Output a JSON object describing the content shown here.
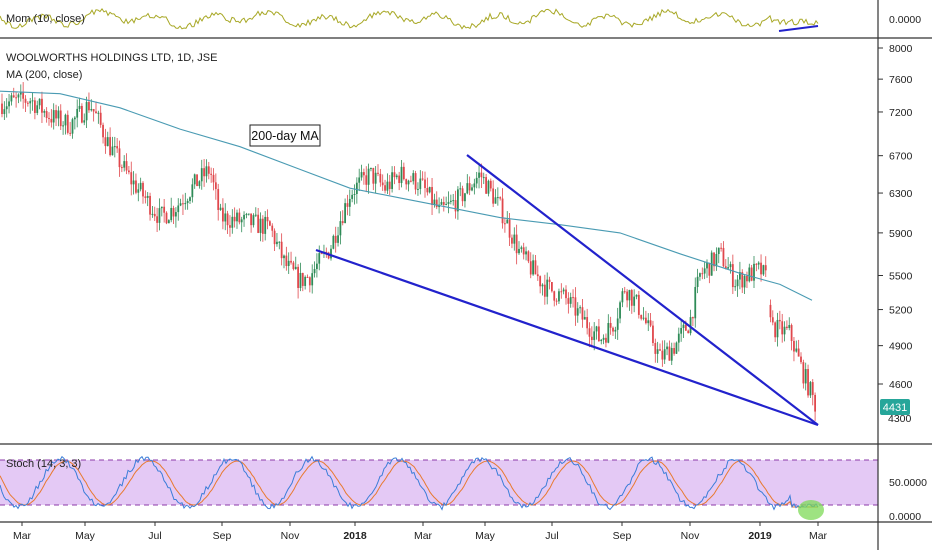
{
  "colors": {
    "momentum": "#a8a826",
    "ma": "#4a9bb3",
    "up_candle": "#2e8b57",
    "down_candle": "#e0474c",
    "trendline": "#2222cc",
    "stoch_k": "#3b7dd8",
    "stoch_d": "#e87a2f",
    "stoch_band": "#e4c9f5",
    "stoch_band_line": "#8b3aa8",
    "price_badge": "#26a69a",
    "highlight": "#7ed957"
  },
  "momentum_pane": {
    "label": "Mom (10, close)",
    "tick": "0.0000"
  },
  "price_pane": {
    "title": "WOOLWORTHS HOLDINGS LTD, 1D, JSE",
    "indicator_label": "MA (200, close)",
    "annotation": "200-day MA",
    "last_price": "4431",
    "partial_tick": "4300",
    "ticks": [
      {
        "value": 8000,
        "label": "8000"
      },
      {
        "value": 7600,
        "label": "7600"
      },
      {
        "value": 7200,
        "label": "7200"
      },
      {
        "value": 6700,
        "label": "6700"
      },
      {
        "value": 6300,
        "label": "6300"
      },
      {
        "value": 5900,
        "label": "5900"
      },
      {
        "value": 5500,
        "label": "5500"
      },
      {
        "value": 5200,
        "label": "5200"
      },
      {
        "value": 4900,
        "label": "4900"
      },
      {
        "value": 4600,
        "label": "4600"
      }
    ]
  },
  "stoch_pane": {
    "label": "Stoch (14, 3, 3)",
    "ticks": [
      "50.0000",
      "0.0000"
    ]
  },
  "x_axis": {
    "labels": [
      "Mar",
      "May",
      "Jul",
      "Sep",
      "Nov",
      "2018",
      "Mar",
      "May",
      "Jul",
      "Sep",
      "Nov",
      "2019",
      "Mar"
    ]
  }
}
